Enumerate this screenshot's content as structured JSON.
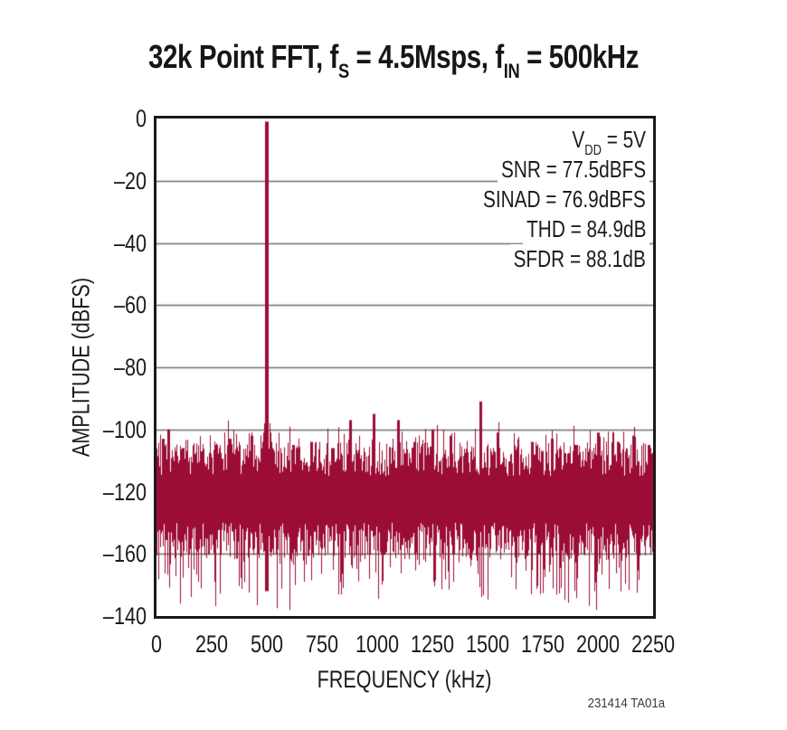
{
  "title": {
    "t1": "32k Point FFT, f",
    "sub1": "S",
    "t2": " = 4.5Msps, f",
    "sub2": "IN",
    "t3": " = 500kHz"
  },
  "footnote": "231414 TA01a",
  "annotations": {
    "vdd_pre": "V",
    "vdd_sub": "DD",
    "vdd_post": " = 5V",
    "lines": [
      "SNR = 77.5dBFS",
      "SINAD = 76.9dBFS",
      "THD = 84.9dB",
      "SFDR = 88.1dB"
    ]
  },
  "colors": {
    "series": "#9C0D35",
    "grid": "#6e6e6e",
    "frame": "#1a1a1a",
    "text": "#1c1c1c",
    "background": "#ffffff"
  },
  "chart_data": {
    "type": "line",
    "subtype": "fft-spectrum",
    "title": "32k Point FFT, fS = 4.5Msps, fIN = 500kHz",
    "xlabel": "FREQUENCY (kHz)",
    "ylabel": "AMPLITUDE (dBFS)",
    "xlim": [
      0,
      2250
    ],
    "ylim": [
      -160,
      0
    ],
    "grid": "horizontal-only",
    "x_tick_labels": [
      "0",
      "250",
      "500",
      "750",
      "1000",
      "1250",
      "1500",
      "1750",
      "2000",
      "2250"
    ],
    "y_tick_labels_top_to_bottom": [
      "0",
      "–20",
      "–40",
      "–60",
      "–80",
      "–100",
      "–120",
      "–160",
      "–140"
    ],
    "y_tick_values_top_to_bottom": [
      0,
      -20,
      -40,
      -60,
      -80,
      -100,
      -120,
      -140,
      -160
    ],
    "signal": {
      "freq_khz": 500,
      "amplitude_dbfs": -1
    },
    "spurs": [
      {
        "freq_khz": 30,
        "amplitude_dbfs": -103
      },
      {
        "freq_khz": 55,
        "amplitude_dbfs": -100
      },
      {
        "freq_khz": 120,
        "amplitude_dbfs": -106
      },
      {
        "freq_khz": 200,
        "amplitude_dbfs": -107
      },
      {
        "freq_khz": 270,
        "amplitude_dbfs": -105
      },
      {
        "freq_khz": 330,
        "amplitude_dbfs": -103
      },
      {
        "freq_khz": 430,
        "amplitude_dbfs": -102
      },
      {
        "freq_khz": 620,
        "amplitude_dbfs": -105
      },
      {
        "freq_khz": 700,
        "amplitude_dbfs": -104
      },
      {
        "freq_khz": 800,
        "amplitude_dbfs": -106
      },
      {
        "freq_khz": 875,
        "amplitude_dbfs": -97
      },
      {
        "freq_khz": 985,
        "amplitude_dbfs": -95
      },
      {
        "freq_khz": 1095,
        "amplitude_dbfs": -97
      },
      {
        "freq_khz": 1170,
        "amplitude_dbfs": -104
      },
      {
        "freq_khz": 1250,
        "amplitude_dbfs": -100
      },
      {
        "freq_khz": 1330,
        "amplitude_dbfs": -102
      },
      {
        "freq_khz": 1467,
        "amplitude_dbfs": -91
      },
      {
        "freq_khz": 1545,
        "amplitude_dbfs": -101
      },
      {
        "freq_khz": 1700,
        "amplitude_dbfs": -104
      },
      {
        "freq_khz": 1790,
        "amplitude_dbfs": -103
      },
      {
        "freq_khz": 1900,
        "amplitude_dbfs": -105
      },
      {
        "freq_khz": 2000,
        "amplitude_dbfs": -101
      },
      {
        "freq_khz": 2090,
        "amplitude_dbfs": -104
      },
      {
        "freq_khz": 2160,
        "amplitude_dbfs": -102
      },
      {
        "freq_khz": 2230,
        "amplitude_dbfs": -105
      }
    ],
    "noise_floor": {
      "band_top_dbfs": -104,
      "band_bottom_dbfs": -142,
      "dip_min_dbfs": -158,
      "mean_dbfs": -127
    },
    "performance": {
      "VDD": "5V",
      "SNR_dBFS": 77.5,
      "SINAD_dBFS": 76.9,
      "THD_dB": 84.9,
      "SFDR_dB": 88.1
    }
  }
}
